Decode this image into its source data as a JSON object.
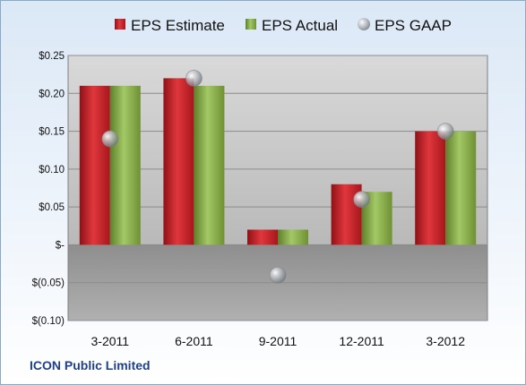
{
  "company": "ICON Public Limited",
  "colors": {
    "estimate": "#c8232a",
    "actual": "#8cb04c",
    "gaap": "#b8bcc2"
  },
  "chart_data": {
    "type": "bar",
    "categories": [
      "3-2011",
      "6-2011",
      "9-2011",
      "12-2011",
      "3-2012"
    ],
    "series": [
      {
        "name": "EPS Estimate",
        "kind": "bar",
        "values": [
          0.21,
          0.22,
          0.02,
          0.08,
          0.15
        ]
      },
      {
        "name": "EPS Actual",
        "kind": "bar",
        "values": [
          0.21,
          0.21,
          0.02,
          0.07,
          0.15
        ]
      },
      {
        "name": "EPS GAAP",
        "kind": "marker",
        "values": [
          0.14,
          0.22,
          -0.04,
          0.06,
          0.15
        ]
      }
    ],
    "ylim": [
      -0.1,
      0.25
    ],
    "yticks": [
      0.25,
      0.2,
      0.15,
      0.1,
      0.05,
      0,
      -0.05,
      -0.1
    ],
    "ytick_labels": [
      "$0.25",
      "$0.20",
      "$0.15",
      "$0.10",
      "$0.05",
      "$-",
      "$(0.05)",
      "$(0.10)"
    ],
    "grid": true,
    "legend": "top",
    "title": "",
    "xlabel": "",
    "ylabel": ""
  }
}
